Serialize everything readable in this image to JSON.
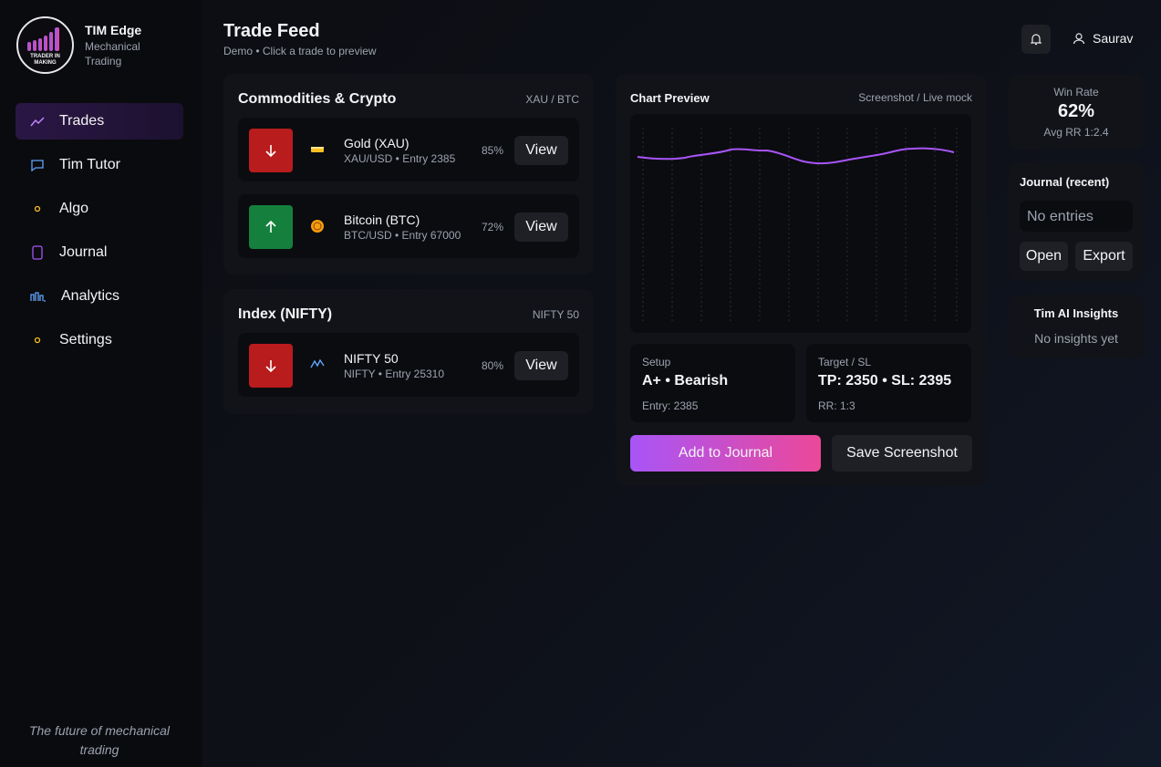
{
  "sidebar": {
    "logo_text": "TRADER IN MAKING",
    "brand": {
      "name": "TIM Edge",
      "tagline": "Mechanical Trading"
    },
    "nav": [
      "Trades",
      "Tim Tutor",
      "Algo",
      "Journal",
      "Analytics",
      "Settings"
    ],
    "footer": "The future of mechanical trading"
  },
  "header": {
    "title": "Trade Feed",
    "subtitle": "Demo • Click a trade to preview",
    "user": "Saurav"
  },
  "feed": [
    {
      "title": "Commodities & Crypto",
      "tag": "XAU / BTC",
      "trades": [
        {
          "name": "Gold (XAU)",
          "detail": "XAU/USD • Entry 2385",
          "confidence": "85%",
          "action": "View"
        },
        {
          "name": "Bitcoin (BTC)",
          "detail": "BTC/USD • Entry 67000",
          "confidence": "72%",
          "action": "View"
        }
      ]
    },
    {
      "title": "Index (NIFTY)",
      "tag": "NIFTY 50",
      "trades": [
        {
          "name": "NIFTY 50",
          "detail": "NIFTY • Entry 25310",
          "confidence": "80%",
          "action": "View"
        }
      ]
    }
  ],
  "preview": {
    "title": "Chart Preview",
    "tag": "Screenshot / Live mock",
    "setup": {
      "label": "Setup",
      "value": "A+ • Bearish",
      "note": "Entry: 2385"
    },
    "target": {
      "label": "Target / SL",
      "value": "TP: 2350 • SL: 2395",
      "note": "RR: 1:3"
    },
    "buttons": [
      "Add to Journal",
      "Save Screenshot"
    ]
  },
  "stats": {
    "label": "Win Rate",
    "value": "62%",
    "note": "Avg RR 1:2.4"
  },
  "journal": {
    "title": "Journal (recent)",
    "empty": "No entries",
    "buttons": [
      "Open",
      "Export"
    ]
  },
  "insights": {
    "title": "Tim AI Insights",
    "empty": "No insights yet"
  }
}
